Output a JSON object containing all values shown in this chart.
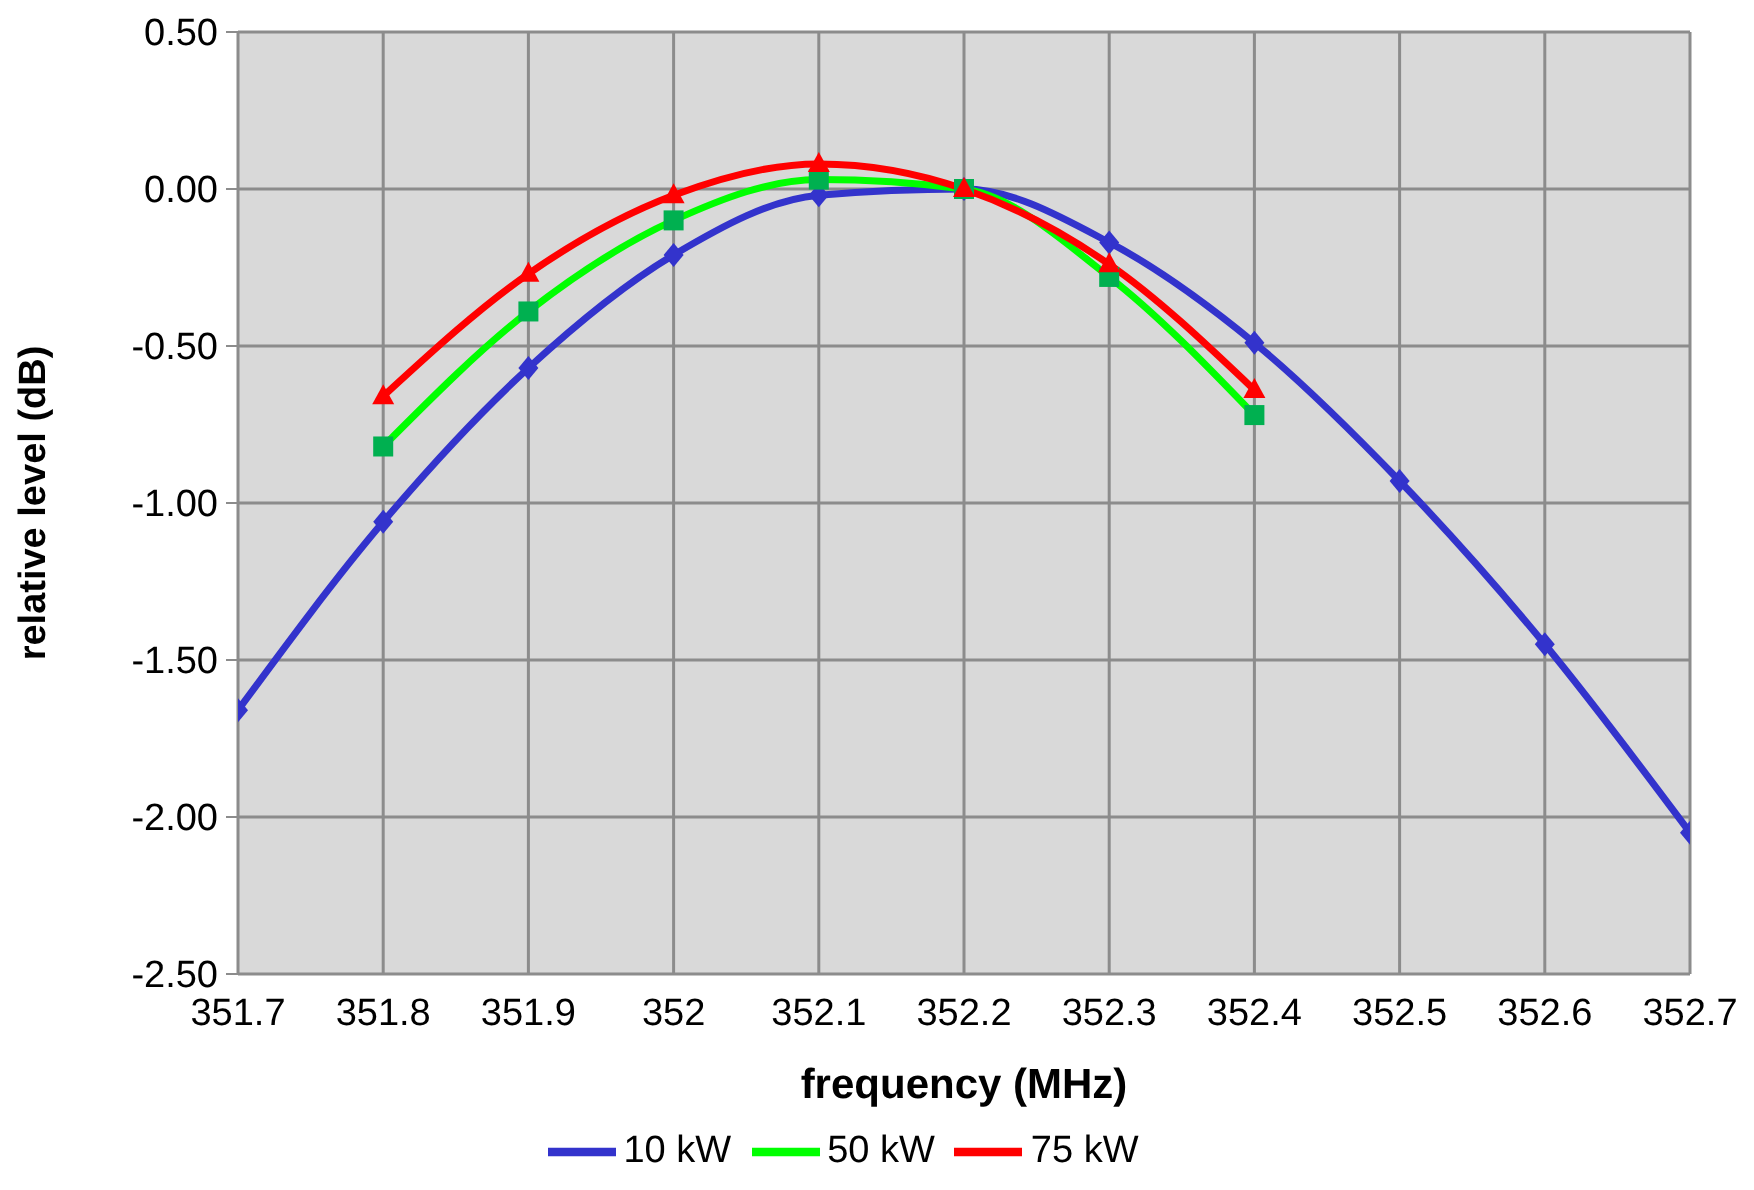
{
  "chart_data": {
    "type": "line",
    "xlabel": "frequency (MHz)",
    "ylabel": "relative level (dB)",
    "x": [
      351.7,
      351.8,
      351.9,
      352,
      352.1,
      352.2,
      352.3,
      352.4,
      352.5,
      352.6,
      352.7
    ],
    "series": [
      {
        "name": "10 kW",
        "color": "#3333cc",
        "marker": "diamond",
        "values": [
          -1.66,
          -1.06,
          -0.57,
          -0.21,
          -0.02,
          0.0,
          -0.17,
          -0.49,
          -0.93,
          -1.45,
          -2.05
        ]
      },
      {
        "name": "50 kW",
        "color": "#00ff00",
        "marker": "square",
        "x": [
          351.8,
          351.9,
          352,
          352.1,
          352.2,
          352.3,
          352.4
        ],
        "values": [
          -0.82,
          -0.39,
          -0.1,
          0.03,
          0.0,
          -0.28,
          -0.72
        ]
      },
      {
        "name": "75 kW",
        "color": "#ff0000",
        "marker": "triangle",
        "x": [
          351.8,
          351.9,
          352,
          352.1,
          352.2,
          352.3,
          352.4
        ],
        "values": [
          -0.66,
          -0.27,
          -0.02,
          0.08,
          0.0,
          -0.24,
          -0.64
        ]
      }
    ],
    "xlim": [
      351.7,
      352.7
    ],
    "xticks": [
      351.7,
      351.8,
      351.9,
      352,
      352.1,
      352.2,
      352.3,
      352.4,
      352.5,
      352.6,
      352.7
    ],
    "ylim": [
      -2.5,
      0.5
    ],
    "yticks": [
      {
        "value": -2.5,
        "label": "-2.50"
      },
      {
        "value": -2,
        "label": "-2.00"
      },
      {
        "value": -1.5,
        "label": "-1.50"
      },
      {
        "value": -1,
        "label": "-1.00"
      },
      {
        "value": -0.5,
        "label": "-0.50"
      },
      {
        "value": 0,
        "label": "0.00"
      },
      {
        "value": 0.5,
        "label": "0.50"
      }
    ],
    "grid": true,
    "legend": "bottom",
    "line_style": "solid"
  }
}
